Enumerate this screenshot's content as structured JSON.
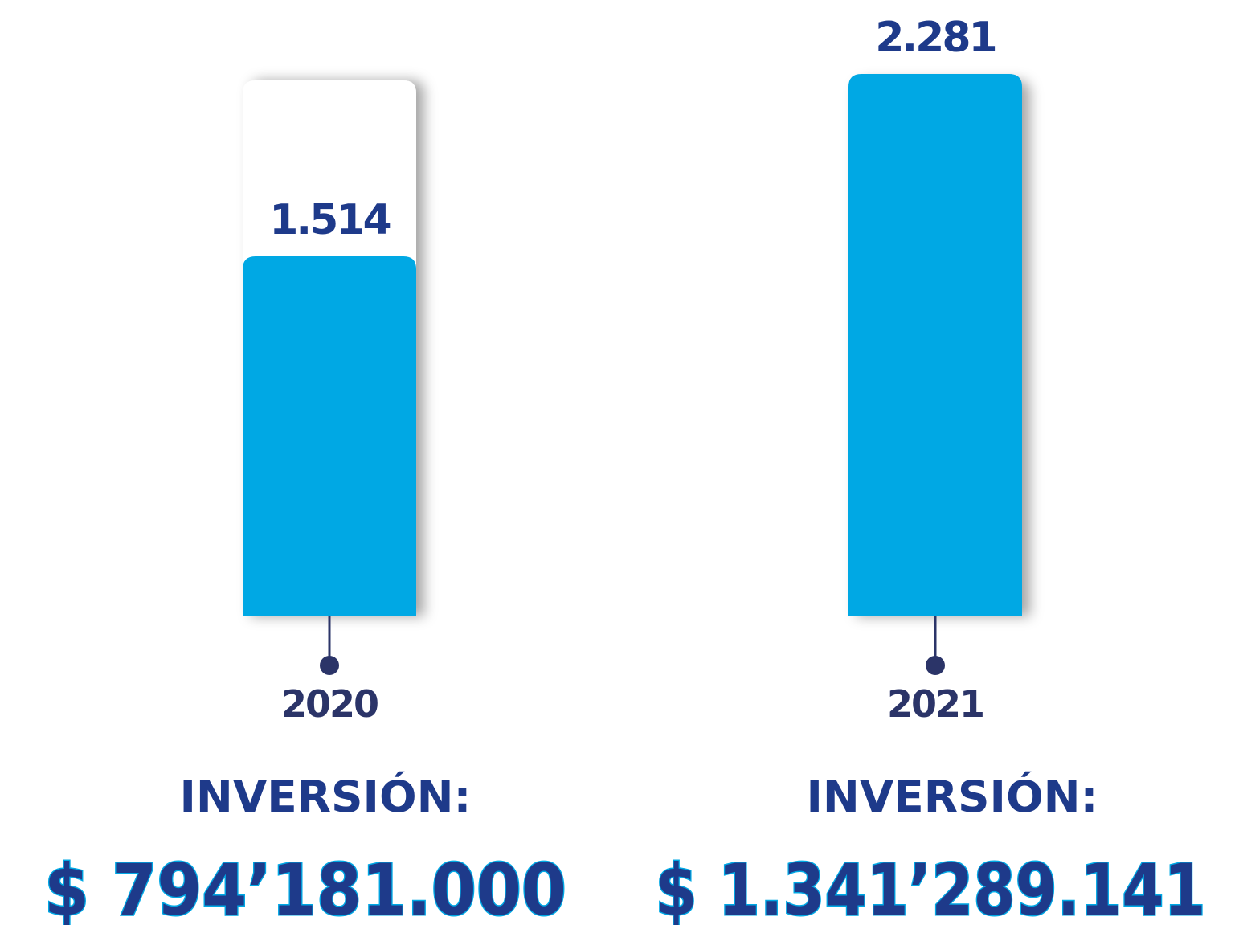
{
  "chart_data": {
    "type": "bar",
    "categories": [
      "2020",
      "2021"
    ],
    "values": [
      1514,
      2281
    ],
    "value_labels": [
      "1.514",
      "2.281"
    ],
    "color": "#00a8e4",
    "annotations": [
      {
        "label": "INVERSIÓN:",
        "amount": "$ 794’181.000"
      },
      {
        "label": "INVERSIÓN:",
        "amount": "$ 1.341’289.141"
      }
    ]
  }
}
